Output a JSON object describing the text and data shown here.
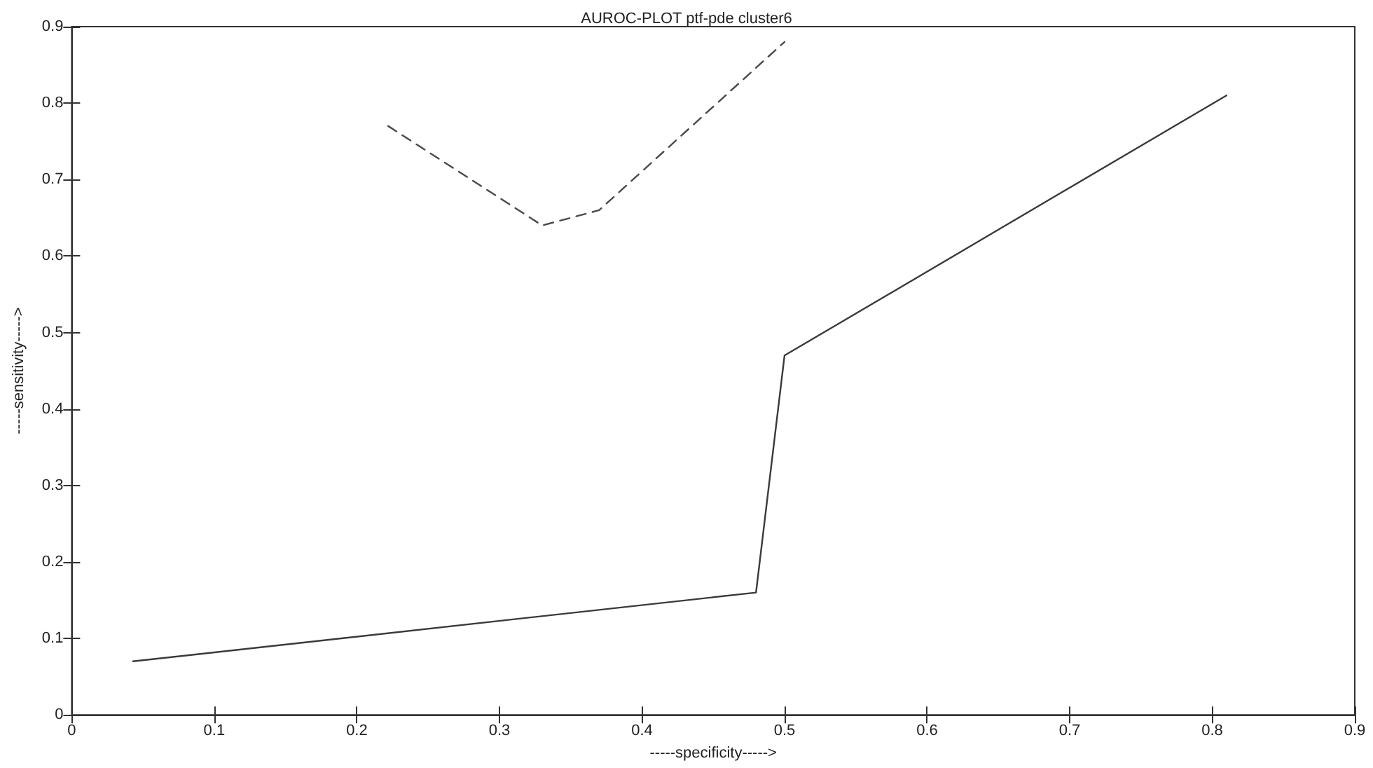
{
  "chart_data": {
    "type": "line",
    "title": "AUROC-PLOT ptf-pde cluster6",
    "xlabel": "-----specificity----->",
    "ylabel": "-----sensitivity----->",
    "xlim": [
      0,
      0.9
    ],
    "xticks": [
      0,
      0.1,
      0.2,
      0.3,
      0.4,
      0.5,
      0.6,
      0.7,
      0.8,
      0.9
    ],
    "ylim": [
      0,
      0.9
    ],
    "yticks": [
      0,
      0.1,
      0.2,
      0.3,
      0.4,
      0.5,
      0.6,
      0.7,
      0.8,
      0.9
    ],
    "marker": "none",
    "series": [
      {
        "color": "#3a3a3a",
        "line_style": "solid",
        "x": [
          0.043,
          0.48,
          0.5,
          0.81
        ],
        "values": [
          0.07,
          0.16,
          0.47,
          0.81
        ]
      },
      {
        "color": "#4a4a4a",
        "line_style": "dashed",
        "x": [
          0.222,
          0.33,
          0.37,
          0.5
        ],
        "values": [
          0.77,
          0.64,
          0.66,
          0.88
        ]
      }
    ]
  }
}
